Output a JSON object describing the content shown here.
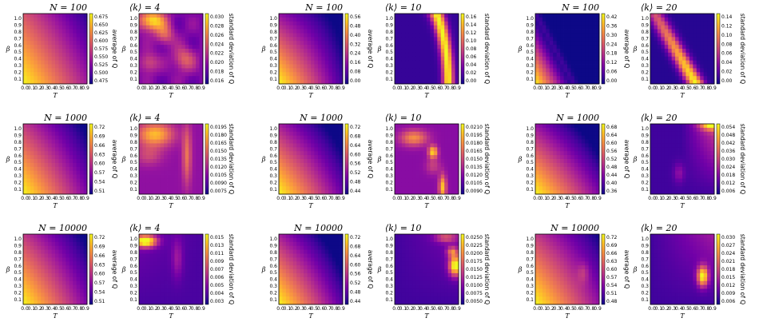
{
  "x_ticks": [
    "0.0",
    "0.1",
    "0.2",
    "0.3",
    "0.4",
    "0.5",
    "0.6",
    "0.7",
    "0.8",
    "0.9"
  ],
  "y_ticks": [
    "0.1",
    "0.2",
    "0.3",
    "0.4",
    "0.5",
    "0.6",
    "0.7",
    "0.8",
    "0.9",
    "1.0"
  ],
  "x_label": "T",
  "y_label": "β",
  "avg_label": "average of Q",
  "std_label": "standard deviation of Q",
  "colormap": [
    "#0d0887",
    "#46039f",
    "#7201a8",
    "#9c179e",
    "#bd3786",
    "#d8576b",
    "#ed7953",
    "#fb9f3a",
    "#fdca26",
    "#f0f921"
  ],
  "chart_data": [
    {
      "type": "heatmap",
      "row": 0,
      "col": 0,
      "kind": "average",
      "title": "N = 100",
      "xlabel": "T",
      "ylabel": "β",
      "colorbar_label": "average of Q",
      "colorbar_ticks": [
        "0.675",
        "0.650",
        "0.625",
        "0.600",
        "0.575",
        "0.550",
        "0.525",
        "0.500",
        "0.475"
      ],
      "xlim": [
        0,
        0.9
      ],
      "ylim": [
        0.1,
        1.0
      ]
    },
    {
      "type": "heatmap",
      "row": 0,
      "col": 1,
      "kind": "std",
      "title": "⟨k⟩ = 4",
      "xlabel": "T",
      "ylabel": "β",
      "colorbar_label": "standard deviation of Q",
      "colorbar_ticks": [
        "0.030",
        "0.028",
        "0.026",
        "0.024",
        "0.022",
        "0.020",
        "0.018",
        "0.016"
      ],
      "xlim": [
        0,
        0.9
      ],
      "ylim": [
        0.1,
        1.0
      ]
    },
    {
      "type": "heatmap",
      "row": 0,
      "col": 2,
      "kind": "average",
      "title": "N = 100",
      "xlabel": "T",
      "ylabel": "β",
      "colorbar_label": "average of Q",
      "colorbar_ticks": [
        "0.56",
        "0.48",
        "0.40",
        "0.32",
        "0.24",
        "0.16",
        "0.08",
        "0.00"
      ],
      "xlim": [
        0,
        0.9
      ],
      "ylim": [
        0.1,
        1.0
      ]
    },
    {
      "type": "heatmap",
      "row": 0,
      "col": 3,
      "kind": "std",
      "title": "⟨k⟩ = 10",
      "xlabel": "T",
      "ylabel": "β",
      "colorbar_label": "standard deviation of Q",
      "colorbar_ticks": [
        "0.16",
        "0.14",
        "0.12",
        "0.10",
        "0.08",
        "0.06",
        "0.04",
        "0.02",
        "0.00"
      ],
      "xlim": [
        0,
        0.9
      ],
      "ylim": [
        0.1,
        1.0
      ]
    },
    {
      "type": "heatmap",
      "row": 0,
      "col": 4,
      "kind": "average",
      "title": "N = 100",
      "xlabel": "T",
      "ylabel": "β",
      "colorbar_label": "average of Q",
      "colorbar_ticks": [
        "0.42",
        "0.36",
        "0.30",
        "0.24",
        "0.18",
        "0.12",
        "0.06",
        "0.00"
      ],
      "xlim": [
        0,
        0.9
      ],
      "ylim": [
        0.1,
        1.0
      ]
    },
    {
      "type": "heatmap",
      "row": 0,
      "col": 5,
      "kind": "std",
      "title": "⟨k⟩ = 20",
      "xlabel": "T",
      "ylabel": "β",
      "colorbar_label": "standard deviation of Q",
      "colorbar_ticks": [
        "0.14",
        "0.12",
        "0.10",
        "0.08",
        "0.06",
        "0.04",
        "0.02",
        "0.00"
      ],
      "xlim": [
        0,
        0.9
      ],
      "ylim": [
        0.1,
        1.0
      ]
    },
    {
      "type": "heatmap",
      "row": 1,
      "col": 0,
      "kind": "average",
      "title": "N = 1000",
      "xlabel": "T",
      "ylabel": "β",
      "colorbar_label": "average of Q",
      "colorbar_ticks": [
        "0.72",
        "0.69",
        "0.66",
        "0.63",
        "0.60",
        "0.57",
        "0.54",
        "0.51"
      ],
      "xlim": [
        0,
        0.9
      ],
      "ylim": [
        0.1,
        1.0
      ]
    },
    {
      "type": "heatmap",
      "row": 1,
      "col": 1,
      "kind": "std",
      "title": "⟨k⟩ = 4",
      "xlabel": "T",
      "ylabel": "β",
      "colorbar_label": "standard deviation of Q",
      "colorbar_ticks": [
        "0.0195",
        "0.0180",
        "0.0165",
        "0.0150",
        "0.0135",
        "0.0120",
        "0.0105",
        "0.0090",
        "0.0075"
      ],
      "xlim": [
        0,
        0.9
      ],
      "ylim": [
        0.1,
        1.0
      ]
    },
    {
      "type": "heatmap",
      "row": 1,
      "col": 2,
      "kind": "average",
      "title": "N = 1000",
      "xlabel": "T",
      "ylabel": "β",
      "colorbar_label": "average of Q",
      "colorbar_ticks": [
        "0.72",
        "0.68",
        "0.64",
        "0.60",
        "0.56",
        "0.52",
        "0.48",
        "0.44"
      ],
      "xlim": [
        0,
        0.9
      ],
      "ylim": [
        0.1,
        1.0
      ]
    },
    {
      "type": "heatmap",
      "row": 1,
      "col": 3,
      "kind": "std",
      "title": "⟨k⟩ = 10",
      "xlabel": "T",
      "ylabel": "β",
      "colorbar_label": "standard deviation of Q",
      "colorbar_ticks": [
        "0.0210",
        "0.0195",
        "0.0180",
        "0.0165",
        "0.0150",
        "0.0135",
        "0.0120",
        "0.0105",
        "0.0090"
      ],
      "xlim": [
        0,
        0.9
      ],
      "ylim": [
        0.1,
        1.0
      ]
    },
    {
      "type": "heatmap",
      "row": 1,
      "col": 4,
      "kind": "average",
      "title": "N = 1000",
      "xlabel": "T",
      "ylabel": "β",
      "colorbar_label": "average of Q",
      "colorbar_ticks": [
        "0.68",
        "0.64",
        "0.60",
        "0.56",
        "0.52",
        "0.48",
        "0.44",
        "0.40",
        "0.36"
      ],
      "xlim": [
        0,
        0.9
      ],
      "ylim": [
        0.1,
        1.0
      ]
    },
    {
      "type": "heatmap",
      "row": 1,
      "col": 5,
      "kind": "std",
      "title": "⟨k⟩ = 20",
      "xlabel": "T",
      "ylabel": "β",
      "colorbar_label": "standard deviation of Q",
      "colorbar_ticks": [
        "0.054",
        "0.048",
        "0.042",
        "0.036",
        "0.030",
        "0.024",
        "0.018",
        "0.012",
        "0.006"
      ],
      "xlim": [
        0,
        0.9
      ],
      "ylim": [
        0.1,
        1.0
      ]
    },
    {
      "type": "heatmap",
      "row": 2,
      "col": 0,
      "kind": "average",
      "title": "N = 10000",
      "xlabel": "T",
      "ylabel": "β",
      "colorbar_label": "average of Q",
      "colorbar_ticks": [
        "0.72",
        "0.69",
        "0.66",
        "0.63",
        "0.60",
        "0.57",
        "0.54",
        "0.51"
      ],
      "xlim": [
        0,
        0.9
      ],
      "ylim": [
        0.1,
        1.0
      ]
    },
    {
      "type": "heatmap",
      "row": 2,
      "col": 1,
      "kind": "std",
      "title": "⟨k⟩ = 4",
      "xlabel": "T",
      "ylabel": "β",
      "colorbar_label": "standard deviation of Q",
      "colorbar_ticks": [
        "0.015",
        "0.013",
        "0.011",
        "0.009",
        "0.007",
        "0.006",
        "0.005",
        "0.004",
        "0.003"
      ],
      "xlim": [
        0,
        0.9
      ],
      "ylim": [
        0.1,
        1.0
      ]
    },
    {
      "type": "heatmap",
      "row": 2,
      "col": 2,
      "kind": "average",
      "title": "N = 10000",
      "xlabel": "T",
      "ylabel": "β",
      "colorbar_label": "average of Q",
      "colorbar_ticks": [
        "0.72",
        "0.68",
        "0.64",
        "0.60",
        "0.56",
        "0.52",
        "0.48",
        "0.44"
      ],
      "xlim": [
        0,
        0.9
      ],
      "ylim": [
        0.1,
        1.0
      ]
    },
    {
      "type": "heatmap",
      "row": 2,
      "col": 3,
      "kind": "std",
      "title": "⟨k⟩ = 10",
      "xlabel": "T",
      "ylabel": "β",
      "colorbar_label": "standard deviation of Q",
      "colorbar_ticks": [
        "0.0250",
        "0.0225",
        "0.0200",
        "0.0175",
        "0.0150",
        "0.0125",
        "0.0100",
        "0.0075",
        "0.0050"
      ],
      "xlim": [
        0,
        0.9
      ],
      "ylim": [
        0.1,
        1.0
      ]
    },
    {
      "type": "heatmap",
      "row": 2,
      "col": 4,
      "kind": "average",
      "title": "N = 10000",
      "xlabel": "T",
      "ylabel": "β",
      "colorbar_label": "average of Q",
      "colorbar_ticks": [
        "0.72",
        "0.69",
        "0.66",
        "0.63",
        "0.60",
        "0.57",
        "0.54",
        "0.51",
        "0.48"
      ],
      "xlim": [
        0,
        0.9
      ],
      "ylim": [
        0.1,
        1.0
      ]
    },
    {
      "type": "heatmap",
      "row": 2,
      "col": 5,
      "kind": "std",
      "title": "⟨k⟩ = 20",
      "xlabel": "T",
      "ylabel": "β",
      "colorbar_label": "standard deviation of Q",
      "colorbar_ticks": [
        "0.030",
        "0.027",
        "0.024",
        "0.021",
        "0.018",
        "0.015",
        "0.012",
        "0.009",
        "0.006"
      ],
      "xlim": [
        0,
        0.9
      ],
      "ylim": [
        0.1,
        1.0
      ]
    }
  ]
}
